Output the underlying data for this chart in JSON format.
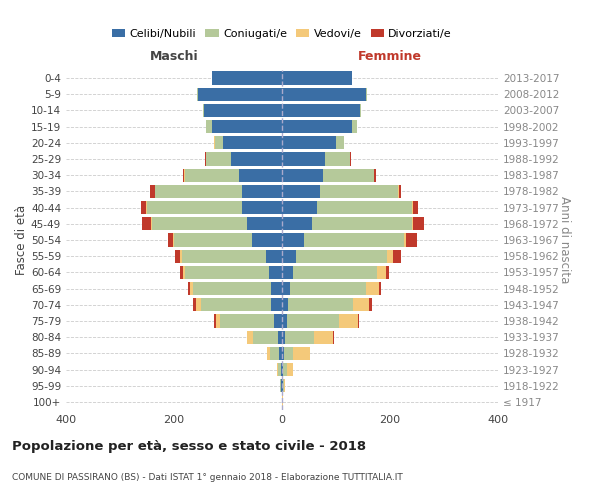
{
  "age_groups": [
    "100+",
    "95-99",
    "90-94",
    "85-89",
    "80-84",
    "75-79",
    "70-74",
    "65-69",
    "60-64",
    "55-59",
    "50-54",
    "45-49",
    "40-44",
    "35-39",
    "30-34",
    "25-29",
    "20-24",
    "15-19",
    "10-14",
    "5-9",
    "0-4"
  ],
  "birth_years": [
    "≤ 1917",
    "1918-1922",
    "1923-1927",
    "1928-1932",
    "1933-1937",
    "1938-1942",
    "1943-1947",
    "1948-1952",
    "1953-1957",
    "1958-1962",
    "1963-1967",
    "1968-1972",
    "1973-1977",
    "1978-1982",
    "1983-1987",
    "1988-1992",
    "1993-1997",
    "1998-2002",
    "2003-2007",
    "2008-2012",
    "2013-2017"
  ],
  "colors": {
    "celibi": "#3a6ea5",
    "coniugati": "#b5c99a",
    "vedovi": "#f4c97a",
    "divorziati": "#c0392b"
  },
  "males": {
    "celibi": [
      0,
      1,
      2,
      5,
      8,
      15,
      20,
      20,
      25,
      30,
      55,
      65,
      75,
      75,
      80,
      95,
      110,
      130,
      145,
      155,
      130
    ],
    "coniugati": [
      0,
      2,
      5,
      18,
      45,
      100,
      130,
      145,
      155,
      155,
      145,
      175,
      175,
      160,
      100,
      45,
      15,
      10,
      2,
      2,
      0
    ],
    "vedovi": [
      0,
      1,
      3,
      5,
      12,
      8,
      10,
      5,
      3,
      3,
      2,
      2,
      1,
      1,
      1,
      1,
      1,
      0,
      0,
      0,
      0
    ],
    "divorziati": [
      0,
      0,
      0,
      0,
      0,
      3,
      5,
      5,
      5,
      10,
      10,
      18,
      10,
      8,
      3,
      1,
      0,
      0,
      0,
      0,
      0
    ]
  },
  "females": {
    "celibi": [
      0,
      1,
      2,
      3,
      5,
      10,
      12,
      15,
      20,
      25,
      40,
      55,
      65,
      70,
      75,
      80,
      100,
      130,
      145,
      155,
      130
    ],
    "coniugati": [
      0,
      2,
      8,
      18,
      55,
      95,
      120,
      140,
      155,
      170,
      185,
      185,
      175,
      145,
      95,
      45,
      15,
      8,
      2,
      2,
      0
    ],
    "vedovi": [
      1,
      3,
      10,
      30,
      35,
      35,
      30,
      25,
      18,
      10,
      5,
      3,
      2,
      1,
      1,
      1,
      0,
      0,
      0,
      0,
      0
    ],
    "divorziati": [
      0,
      0,
      0,
      0,
      2,
      2,
      5,
      3,
      5,
      15,
      20,
      20,
      10,
      5,
      3,
      1,
      0,
      0,
      0,
      0,
      0
    ]
  },
  "xlim": 400,
  "title": "Popolazione per età, sesso e stato civile - 2018",
  "subtitle": "COMUNE DI PASSIRANO (BS) - Dati ISTAT 1° gennaio 2018 - Elaborazione TUTTITALIA.IT",
  "xlabel_left": "Maschi",
  "xlabel_right": "Femmine",
  "ylabel_left": "Fasce di età",
  "ylabel_right": "Anni di nascita",
  "legend_labels": [
    "Celibi/Nubili",
    "Coniugati/e",
    "Vedovi/e",
    "Divorziati/e"
  ]
}
